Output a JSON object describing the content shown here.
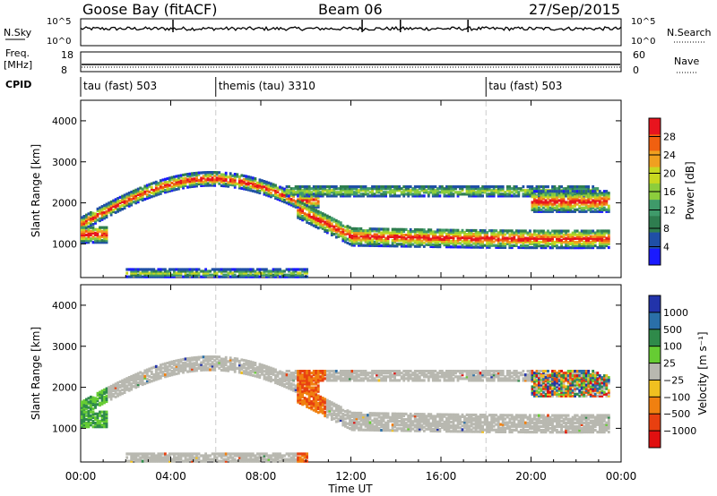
{
  "header": {
    "station": "Goose Bay (fitACF)",
    "beam": "Beam 06",
    "date": "27/Sep/2015"
  },
  "noise_panel": {
    "left_label": "N.Sky",
    "right_label": "N.Search",
    "y_top_left": "10^5",
    "y_bottom_left": "10^0",
    "y_top_right": "10^5",
    "y_bottom_right": "10^0"
  },
  "freq_panel": {
    "left_label_1": "Freq.",
    "left_label_2": "[MHz]",
    "right_label": "Nave",
    "y_top_left": "18",
    "y_bottom_left": "8",
    "y_top_right": "60",
    "y_bottom_right": "0"
  },
  "cpid_panel": {
    "label": "CPID",
    "segments": [
      {
        "name": "tau (fast) 503",
        "start_hour": 0
      },
      {
        "name": "themis (tau) 3310",
        "start_hour": 6
      },
      {
        "name": "tau (fast) 503",
        "start_hour": 18
      }
    ]
  },
  "colors": {
    "power_scale": [
      "#1a1aff",
      "#1f4fa6",
      "#2e7d4f",
      "#3f9a6a",
      "#8ccd3c",
      "#c8d820",
      "#f0a020",
      "#f06010",
      "#e8141e"
    ],
    "velocity_scale": [
      "#2233aa",
      "#2a6fa8",
      "#2f8a4a",
      "#66cc33",
      "#b8b8b0",
      "#f0c020",
      "#f08010",
      "#e84010",
      "#e01010"
    ]
  },
  "chart_data": [
    {
      "type": "heatmap",
      "name": "power",
      "ylabel": "Slant Range [km]",
      "ylim": [
        180,
        4500
      ],
      "y_ticks": [
        1000,
        2000,
        3000,
        4000
      ],
      "xlim": [
        0,
        24
      ],
      "colorbar_label": "Power [dB]",
      "colorbar_ticks": [
        "4",
        "8",
        "12",
        "16",
        "20",
        "24",
        "28"
      ],
      "colorbar_range": [
        0,
        32
      ]
    },
    {
      "type": "heatmap",
      "name": "velocity",
      "ylabel": "Slant Range [km]",
      "ylim": [
        180,
        4500
      ],
      "y_ticks": [
        1000,
        2000,
        3000,
        4000
      ],
      "xlim": [
        0,
        24
      ],
      "colorbar_label": "Velocity [m s⁻¹]",
      "colorbar_ticks": [
        "1000",
        "500",
        "100",
        "25",
        "−25",
        "−100",
        "−500",
        "−1000"
      ]
    }
  ],
  "x_axis": {
    "label": "Time UT",
    "ticks": [
      "00:00",
      "04:00",
      "08:00",
      "12:00",
      "16:00",
      "20:00",
      "00:00"
    ]
  }
}
